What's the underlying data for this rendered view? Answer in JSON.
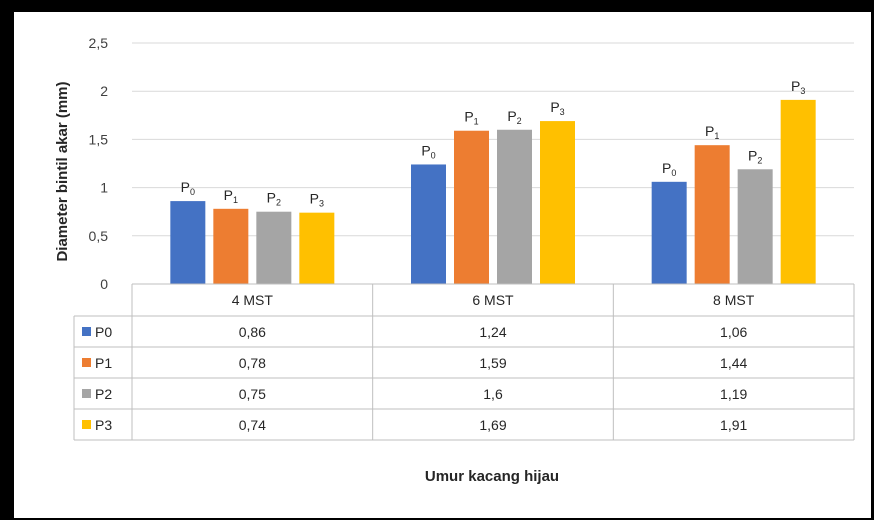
{
  "chart_data": {
    "type": "bar",
    "ylabel": "Diameter bintil akar (mm)",
    "xlabel": "Umur kacang  hijau",
    "ylim": [
      0,
      2.5
    ],
    "y_ticks": [
      "0",
      "0,5",
      "1",
      "1,5",
      "2",
      "2,5"
    ],
    "grid": true,
    "categories": [
      "4 MST",
      "6 MST",
      "8 MST"
    ],
    "series": [
      {
        "name": "P0",
        "bar_label": "P",
        "bar_label_sub": "0",
        "color": "#4472C4",
        "values": [
          0.86,
          1.24,
          1.06
        ],
        "display": [
          "0,86",
          "1,24",
          "1,06"
        ]
      },
      {
        "name": "P1",
        "bar_label": "P",
        "bar_label_sub": "1",
        "color": "#ED7D31",
        "values": [
          0.78,
          1.59,
          1.44
        ],
        "display": [
          "0,78",
          "1,59",
          "1,44"
        ]
      },
      {
        "name": "P2",
        "bar_label": "P",
        "bar_label_sub": "2",
        "color": "#A5A5A5",
        "values": [
          0.75,
          1.6,
          1.19
        ],
        "display": [
          "0,75",
          "1,6",
          "1,19"
        ]
      },
      {
        "name": "P3",
        "bar_label": "P",
        "bar_label_sub": "3",
        "color": "#FFC000",
        "values": [
          0.74,
          1.69,
          1.91
        ],
        "display": [
          "0,74",
          "1,69",
          "1,91"
        ]
      }
    ],
    "legend": "data-table"
  }
}
